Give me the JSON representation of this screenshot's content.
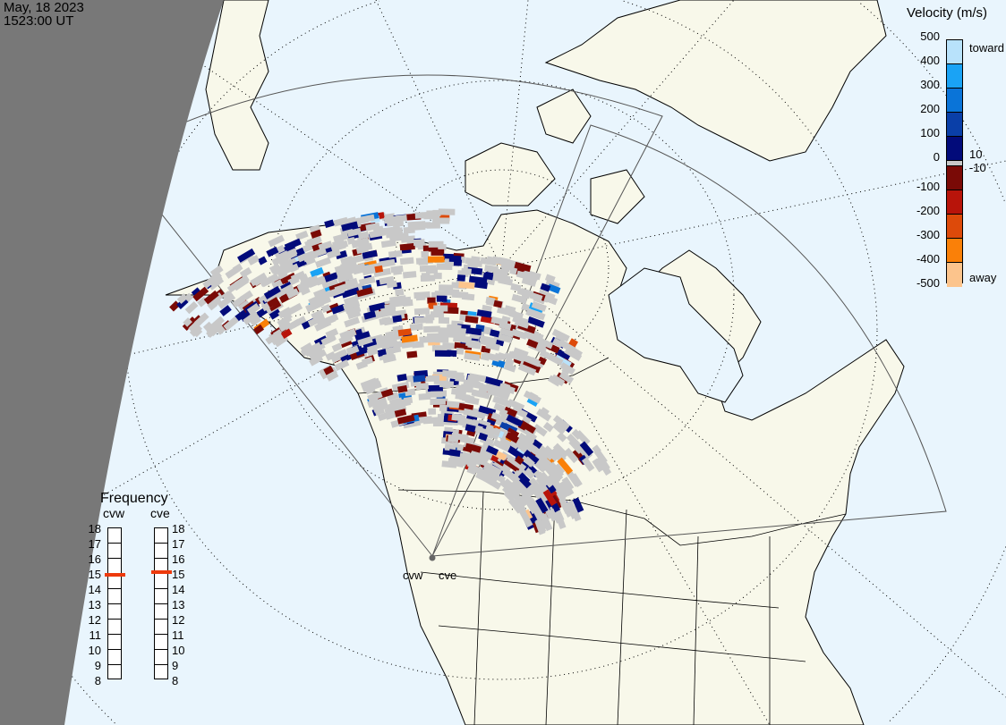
{
  "header": {
    "date": "May, 18 2023",
    "time": "1523:00 UT"
  },
  "velocity_legend": {
    "title": "Velocity (m/s)",
    "ticks": [
      "500",
      "400",
      "300",
      "200",
      "100",
      "0",
      "-100",
      "-200",
      "-300",
      "-400",
      "-500"
    ],
    "toward_label": "toward",
    "away_label": "away",
    "small_pos": "10",
    "small_neg": "-10",
    "colors": [
      "#b8e2fb",
      "#1aa3f5",
      "#0a74d8",
      "#0a3fa8",
      "#020b7a",
      "#c8c8c8",
      "#7a0a06",
      "#b8140a",
      "#dd4a0a",
      "#fa8008",
      "#fcc48c"
    ]
  },
  "frequency_legend": {
    "title": "Frequency",
    "radars": [
      {
        "name": "cvw",
        "freq_mhz": 14.9
      },
      {
        "name": "cve",
        "freq_mhz": 15.05
      }
    ],
    "ticks": [
      "18",
      "17",
      "16",
      "15",
      "14",
      "13",
      "12",
      "11",
      "10",
      "9",
      "8"
    ],
    "range": [
      8,
      18
    ],
    "marker_color": "#ee3a0c"
  },
  "map": {
    "ocean_color": "#e9f5fd",
    "land_color": "#f8f8ea",
    "night_color": "#787878",
    "ground_scatter_color": "#c8c8c8",
    "radar_labels": [
      "cvw",
      "cve"
    ]
  }
}
